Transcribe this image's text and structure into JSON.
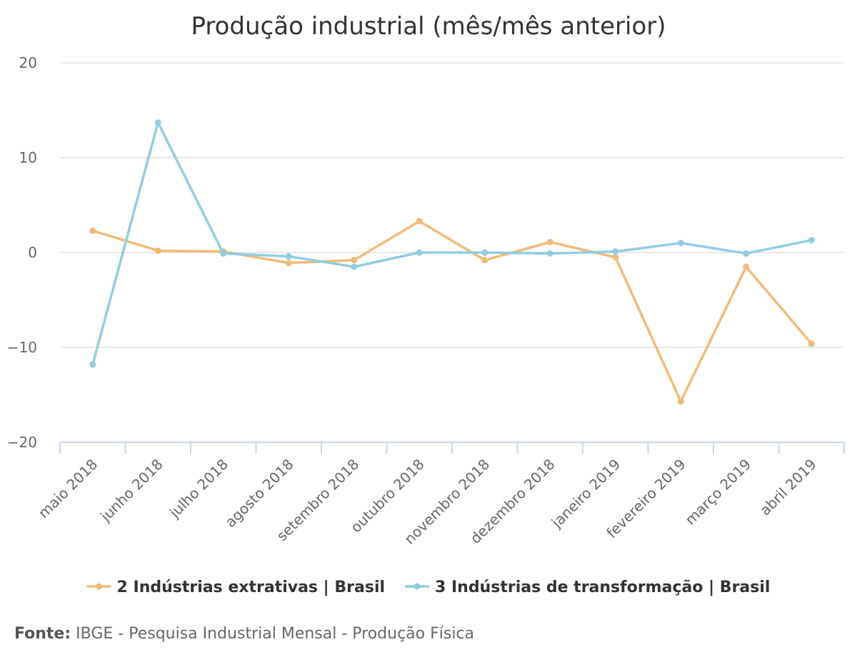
{
  "chart_data": {
    "type": "line",
    "title": "Produção industrial (mês/mês anterior)",
    "xlabel": "",
    "ylabel": "",
    "ylim": [
      -20,
      20
    ],
    "yticks": [
      20,
      10,
      0,
      -10,
      -20
    ],
    "ytick_labels": [
      "20",
      "10",
      "0",
      "−10",
      "−20"
    ],
    "categories": [
      "maio 2018",
      "junho 2018",
      "julho 2018",
      "agosto 2018",
      "setembro 2018",
      "outubro 2018",
      "novembro 2018",
      "dezembro 2018",
      "janeiro 2019",
      "fevereiro 2019",
      "março 2019",
      "abril 2019"
    ],
    "series": [
      {
        "name": "2 Indústrias extrativas | Brasil",
        "color": "#f0bb78",
        "values": [
          2.3,
          0.2,
          0.1,
          -1.1,
          -0.8,
          3.3,
          -0.8,
          1.1,
          -0.5,
          -15.7,
          -1.5,
          -9.6
        ]
      },
      {
        "name": "3 Indústrias de transformação | Brasil",
        "color": "#92cce3",
        "values": [
          -11.8,
          13.7,
          -0.1,
          -0.4,
          -1.5,
          0.0,
          0.0,
          -0.1,
          0.1,
          1.0,
          -0.1,
          1.3
        ]
      }
    ],
    "grid": true,
    "legend": "bottom-center"
  },
  "source": {
    "label": "Fonte:",
    "text": "IBGE - Pesquisa Industrial Mensal - Produção Física"
  }
}
